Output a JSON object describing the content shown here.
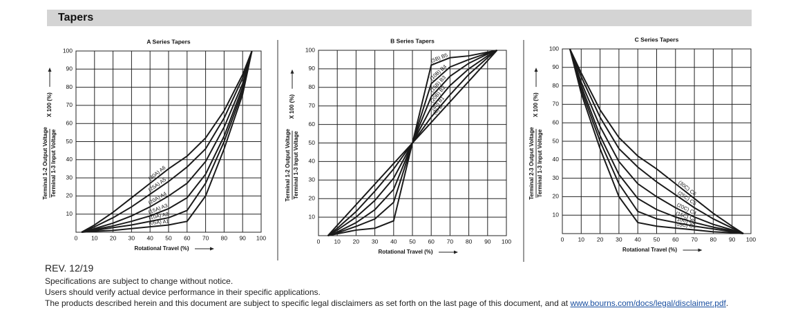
{
  "header": {
    "title": "Tapers"
  },
  "chart_data": [
    {
      "type": "line",
      "title": "A Series Tapers",
      "xlabel": "Rotational Travel (%)",
      "ylabel": [
        "Terminal 1-2 Output Voltage",
        "Terminal 1-3 Input Voltage",
        "X 100 (%)"
      ],
      "xlim": [
        0,
        100
      ],
      "ylim": [
        0,
        100
      ],
      "xticks": [
        0,
        10,
        20,
        30,
        40,
        50,
        60,
        70,
        80,
        90,
        100
      ],
      "yticks": [
        10,
        20,
        30,
        40,
        50,
        60,
        70,
        80,
        90,
        100
      ],
      "grid": true,
      "x": [
        3,
        10,
        20,
        30,
        40,
        50,
        60,
        70,
        80,
        90,
        95
      ],
      "series": [
        {
          "name": "(30A) A6",
          "color": "#1a1a1a",
          "values": [
            0,
            4,
            11,
            19,
            27,
            35,
            42,
            52,
            67,
            87,
            100
          ]
        },
        {
          "name": "(25A) A5",
          "color": "#1a1a1a",
          "values": [
            0,
            3,
            8,
            14,
            21,
            28,
            36,
            46,
            63,
            85,
            100
          ]
        },
        {
          "name": "(20A) A4",
          "color": "#1a1a1a",
          "values": [
            0,
            2,
            5,
            9,
            14,
            20,
            27,
            39,
            58,
            82,
            100
          ]
        },
        {
          "name": "(15A) A3",
          "color": "#1a1a1a",
          "values": [
            0,
            1.5,
            3.5,
            6,
            9,
            13,
            19,
            32,
            53,
            80,
            100
          ]
        },
        {
          "name": "(10A) A2",
          "color": "#1a1a1a",
          "values": [
            0,
            1,
            2.5,
            4,
            6,
            8,
            12,
            27,
            50,
            78,
            100
          ]
        },
        {
          "name": "(05A) A1",
          "color": "#1a1a1a",
          "values": [
            0,
            0.5,
            1,
            2,
            3,
            4,
            6,
            20,
            46,
            76,
            100
          ]
        }
      ]
    },
    {
      "type": "line",
      "title": "B Series Tapers",
      "xlabel": "Rotational Travel (%)",
      "ylabel": [
        "Terminal 1-2 Output Voltage",
        "Terminal 1-3 Input Voltage",
        "X 100 (%)"
      ],
      "xlim": [
        0,
        100
      ],
      "ylim": [
        0,
        100
      ],
      "xticks": [
        0,
        10,
        20,
        30,
        40,
        50,
        60,
        70,
        80,
        90,
        100
      ],
      "yticks": [
        10,
        20,
        30,
        40,
        50,
        60,
        70,
        80,
        90,
        100
      ],
      "grid": true,
      "x": [
        5,
        10,
        20,
        30,
        40,
        50,
        60,
        70,
        80,
        90,
        95
      ],
      "series": [
        {
          "name": "(5B) B5",
          "color": "#1a1a1a",
          "values": [
            0,
            1,
            3,
            4,
            8,
            50,
            92,
            96,
            97,
            99,
            100
          ]
        },
        {
          "name": "(10B) B4",
          "color": "#1a1a1a",
          "values": [
            0,
            1.5,
            5,
            9,
            18,
            50,
            82,
            91,
            95,
            98.5,
            100
          ]
        },
        {
          "name": "(15B) B3",
          "color": "#1a1a1a",
          "values": [
            0,
            2,
            7,
            14,
            25,
            50,
            75,
            86,
            93,
            98,
            100
          ]
        },
        {
          "name": "(20B) B2",
          "color": "#1a1a1a",
          "values": [
            0,
            3,
            10,
            19,
            31,
            50,
            69,
            81,
            90,
            97,
            100
          ]
        },
        {
          "name": "(40) B1",
          "color": "#1a1a1a",
          "values": [
            0,
            4,
            13,
            24,
            36,
            50,
            64,
            76,
            87,
            96,
            100
          ]
        },
        {
          "name": "(0) B",
          "color": "#1a1a1a",
          "values": [
            0,
            5.6,
            16.7,
            27.8,
            38.9,
            50,
            61.1,
            72.2,
            83.3,
            94.4,
            100
          ]
        }
      ]
    },
    {
      "type": "line",
      "title": "C Series Tapers",
      "xlabel": "Rotational Travel (%)",
      "ylabel": [
        "Terminal 2-3 Output Voltage",
        "Terminal 1-3 Input Voltage",
        "X 100 (%)"
      ],
      "xlim": [
        0,
        100
      ],
      "ylim": [
        0,
        100
      ],
      "xticks": [
        0,
        10,
        20,
        30,
        40,
        50,
        60,
        70,
        80,
        90,
        100
      ],
      "yticks": [
        10,
        20,
        30,
        40,
        50,
        60,
        70,
        80,
        90,
        100
      ],
      "grid": true,
      "x": [
        4,
        10,
        20,
        30,
        40,
        50,
        60,
        70,
        80,
        90,
        96
      ],
      "series": [
        {
          "name": "(30C) C6",
          "color": "#1a1a1a",
          "values": [
            100,
            87,
            67,
            52,
            42,
            35,
            27,
            19,
            11,
            4,
            0
          ]
        },
        {
          "name": "(25C) C5",
          "color": "#1a1a1a",
          "values": [
            100,
            85,
            63,
            46,
            36,
            28,
            21,
            14,
            8,
            3,
            0
          ]
        },
        {
          "name": "(20C) C4",
          "color": "#1a1a1a",
          "values": [
            100,
            82,
            58,
            39,
            27,
            20,
            14,
            9,
            5,
            2,
            0
          ]
        },
        {
          "name": "(15C) C3",
          "color": "#1a1a1a",
          "values": [
            100,
            80,
            53,
            32,
            19,
            13,
            9,
            6,
            3.5,
            1.5,
            0
          ]
        },
        {
          "name": "(10C) C2",
          "color": "#1a1a1a",
          "values": [
            100,
            78,
            50,
            27,
            12,
            8,
            6,
            4,
            2.5,
            1,
            0
          ]
        },
        {
          "name": "(05C) C1",
          "color": "#1a1a1a",
          "values": [
            100,
            76,
            46,
            20,
            6,
            4,
            3,
            2,
            1,
            0.5,
            0
          ]
        }
      ]
    }
  ],
  "footer": {
    "rev": "REV. 12/19",
    "lines": [
      "Specifications are subject to change without notice.",
      "Users should verify actual device performance in their specific applications.",
      "The products described herein and this document are subject to specific legal disclaimers as set forth on the last page of this document, and at "
    ],
    "link": "www.bourns.com/docs/legal/disclaimer.pdf",
    "end": "."
  }
}
